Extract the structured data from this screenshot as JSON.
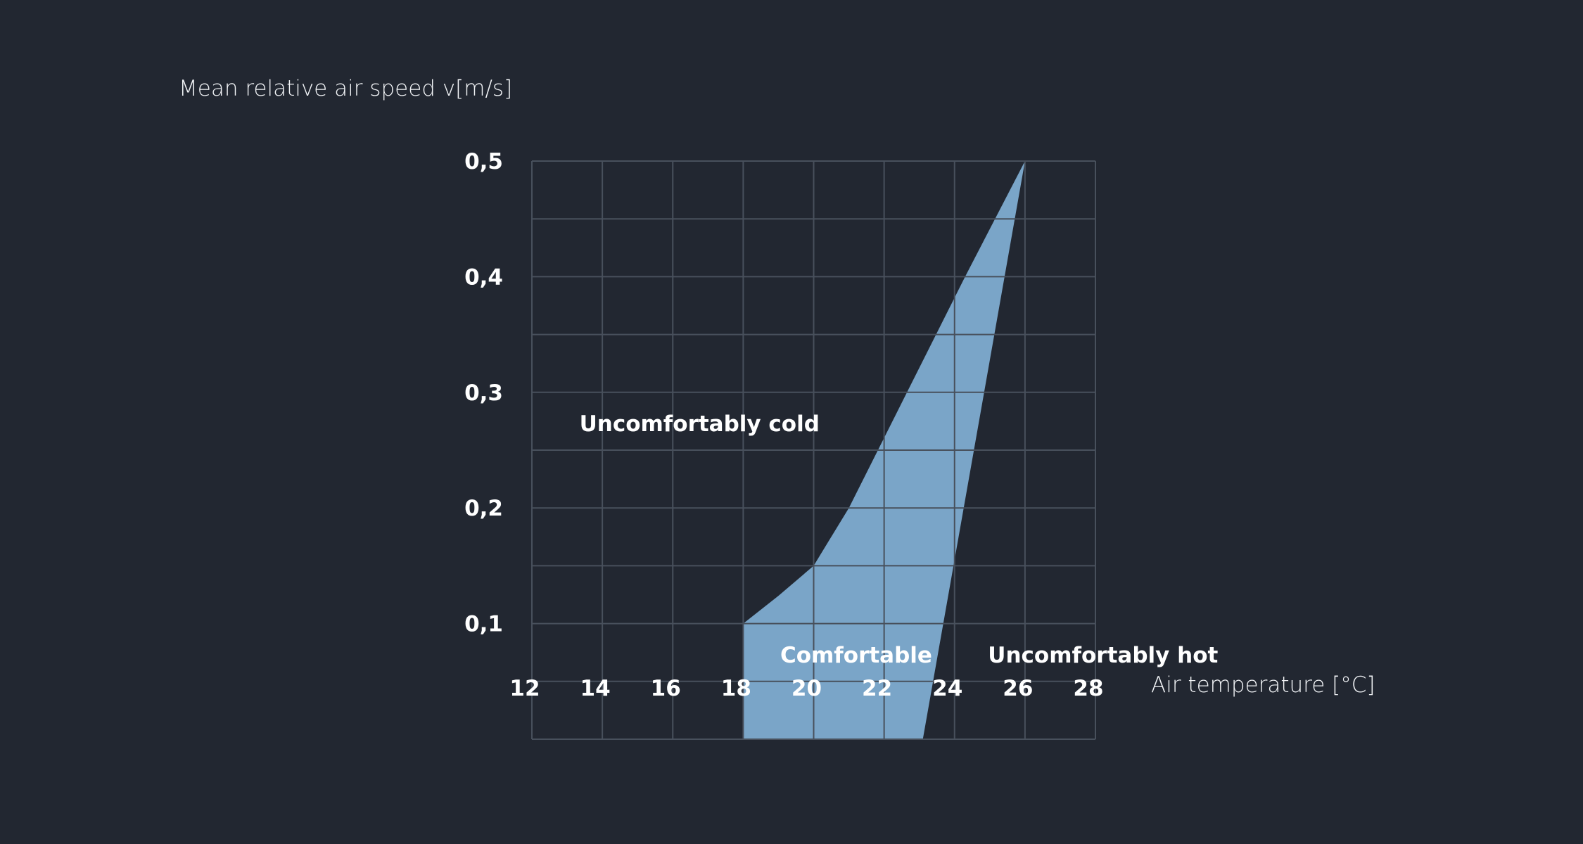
{
  "chart_data": {
    "type": "area",
    "xlabel": "Air temperature [°C]",
    "ylabel": "Mean relative air speed v[m/s]",
    "xlim": [
      12,
      28
    ],
    "ylim": [
      0,
      0.5
    ],
    "x_ticks": [
      "12",
      "14",
      "16",
      "18",
      "20",
      "22",
      "24",
      "26",
      "28"
    ],
    "y_ticks": [
      "0,1",
      "0,2",
      "0,3",
      "0,4",
      "0,5"
    ],
    "grid": true,
    "region": {
      "name": "Comfortable",
      "upper_boundary": [
        [
          18,
          0.1
        ],
        [
          19,
          0.124
        ],
        [
          20,
          0.15
        ],
        [
          20.5,
          0.175
        ],
        [
          21,
          0.2
        ],
        [
          22.65,
          0.3
        ],
        [
          24.3,
          0.4
        ],
        [
          26,
          0.5
        ]
      ],
      "right_boundary": [
        [
          26,
          0.5
        ],
        [
          23.1,
          0
        ]
      ],
      "left_boundary": [
        [
          18,
          0
        ],
        [
          18,
          0.1
        ]
      ]
    },
    "annotations": [
      {
        "text": "Uncomfortably cold",
        "x": 13.35,
        "y": 0.273
      },
      {
        "text": "Comfortable",
        "x": 19.05,
        "y": 0.073
      },
      {
        "text": "Uncomfortably hot",
        "x": 24.95,
        "y": 0.073
      }
    ],
    "colors": {
      "background": "#222731",
      "grid": "#48505c",
      "fill": "#7aa5c8",
      "text": "#ffffff"
    }
  }
}
